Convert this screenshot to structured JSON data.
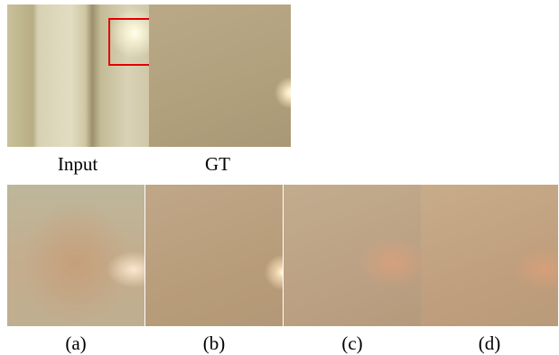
{
  "top": [
    {
      "label": "Input"
    },
    {
      "label": "GT"
    }
  ],
  "bottom": [
    {
      "label": "(a)"
    },
    {
      "label": "(b)"
    },
    {
      "label": "(c)"
    },
    {
      "label": "(d)"
    }
  ]
}
